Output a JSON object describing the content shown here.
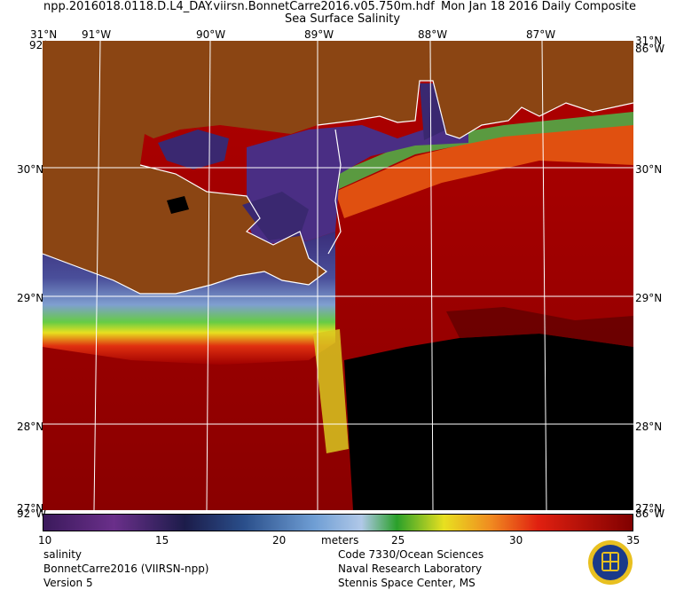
{
  "header": {
    "filename": "npp.2016018.0118.D.L4_DAY.viirsn.BonnetCarre2016.v05.750m.hdf",
    "date": "Mon Jan 18 2016 Daily Composite",
    "product": "Sea Surface Salinity"
  },
  "map": {
    "lon_labels_top": [
      "91°W",
      "90°W",
      "89°W",
      "88°W",
      "87°W"
    ],
    "lat_labels_left": [
      "30°N",
      "29°N",
      "28°N"
    ],
    "lat_labels_right": [
      "30°N",
      "29°N",
      "28°N"
    ],
    "corner_top_left": "31°N",
    "corner_top_right": "31°N",
    "corner_top_left_lon": "92°W",
    "corner_top_right_lon": "86°W",
    "corner_bottom_left": "27°N",
    "corner_bottom_right": "27°N",
    "corner_bottom_left_lon": "92°W",
    "corner_bottom_right_lon": "86°W",
    "colors": {
      "land": "#8b4513",
      "coast": "#ffffff",
      "grid": "#ffffff",
      "nodata": "#000000"
    }
  },
  "colorbar": {
    "ticks": [
      "10",
      "15",
      "20",
      "25",
      "30",
      "35"
    ],
    "units": "meters",
    "min": 10,
    "max": 35
  },
  "footer": {
    "left": [
      "salinity",
      "BonnetCarre2016 (VIIRSN-npp)",
      "Version 5"
    ],
    "right": [
      "Code 7330/Ocean Sciences",
      "Naval Research Laboratory",
      "Stennis Space Center, MS"
    ]
  }
}
